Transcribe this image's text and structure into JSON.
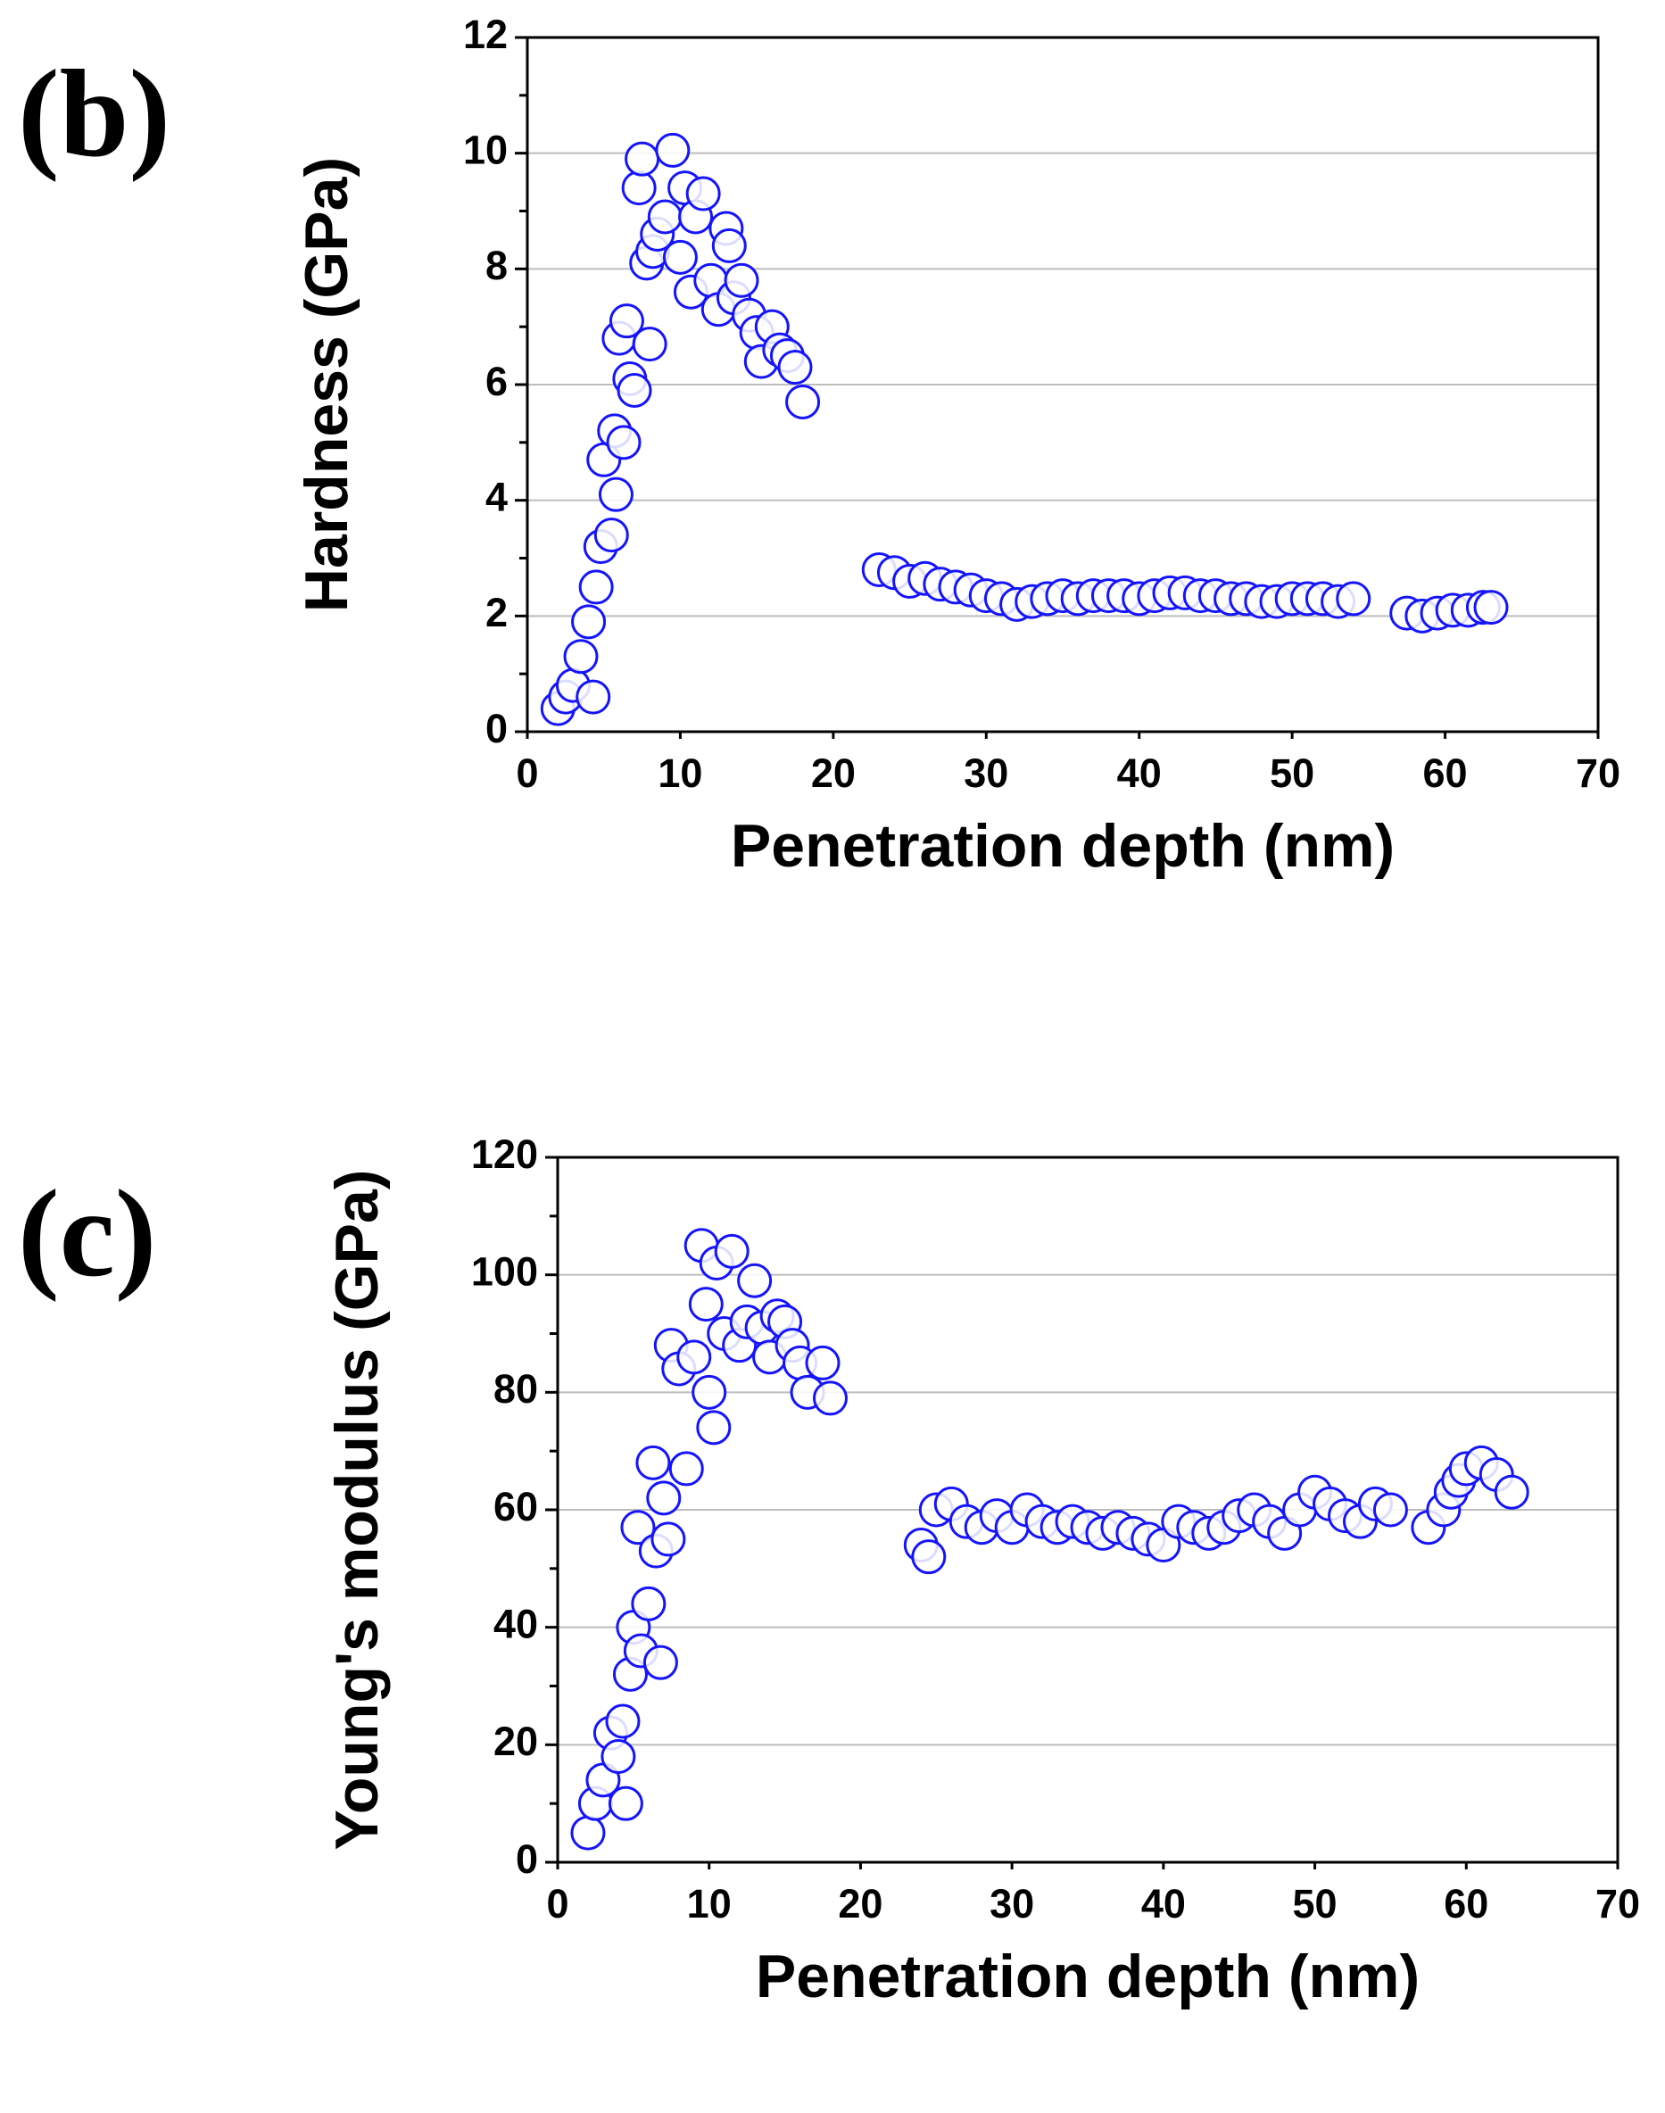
{
  "chart_data": [
    {
      "type": "scatter",
      "panel_label": "(b)",
      "x_label": "Penetration depth (nm)",
      "y_label": "Hardness (GPa)",
      "xlim": [
        0,
        70
      ],
      "xticks": [
        0,
        10,
        20,
        30,
        40,
        50,
        60,
        70
      ],
      "ylim": [
        0,
        12
      ],
      "yticks": [
        0,
        2,
        4,
        6,
        8,
        10,
        12
      ],
      "grid": true,
      "series": [
        {
          "color": "#1414ff",
          "x": [
            2,
            2.5,
            3,
            3.5,
            4,
            4.3,
            4.5,
            4.8,
            5,
            5.5,
            5.7,
            5.8,
            6,
            6.3,
            6.5,
            6.7,
            7,
            7.3,
            7.5,
            7.8,
            8,
            8.2,
            8.5,
            9,
            9.5,
            10,
            10.3,
            10.7,
            11,
            11.5,
            12,
            12.5,
            13,
            13.2,
            13.5,
            14,
            14.5,
            15,
            15.3,
            16,
            16.5,
            17,
            17.5,
            18,
            23,
            24,
            25,
            26,
            27,
            28,
            29,
            30,
            31,
            32,
            33,
            34,
            35,
            36,
            37,
            38,
            39,
            40,
            41,
            42,
            43,
            44,
            45,
            46,
            47,
            48,
            49,
            50,
            51,
            52,
            53,
            54,
            57.5,
            58.5,
            59.5,
            60.5,
            61.5,
            62.5,
            63
          ],
          "values": [
            0.4,
            0.6,
            0.8,
            1.3,
            1.9,
            0.6,
            2.5,
            3.2,
            4.7,
            3.4,
            5.2,
            4.1,
            6.8,
            5,
            7.1,
            6.1,
            5.9,
            9.4,
            9.9,
            8.1,
            6.7,
            8.3,
            8.6,
            8.9,
            10.05,
            8.2,
            9.4,
            7.6,
            8.9,
            9.3,
            7.8,
            7.3,
            8.7,
            8.4,
            7.5,
            7.8,
            7.2,
            6.9,
            6.4,
            7,
            6.6,
            6.5,
            6.3,
            5.7,
            2.8,
            2.75,
            2.6,
            2.65,
            2.55,
            2.5,
            2.45,
            2.35,
            2.3,
            2.2,
            2.25,
            2.3,
            2.35,
            2.3,
            2.35,
            2.35,
            2.35,
            2.3,
            2.35,
            2.4,
            2.4,
            2.35,
            2.35,
            2.3,
            2.3,
            2.25,
            2.25,
            2.3,
            2.3,
            2.3,
            2.25,
            2.3,
            2.05,
            2,
            2.05,
            2.1,
            2.1,
            2.15,
            2.15
          ]
        }
      ]
    },
    {
      "type": "scatter",
      "panel_label": "(c)",
      "x_label": "Penetration depth (nm)",
      "y_label": "Young's modulus (GPa)",
      "xlim": [
        0,
        70
      ],
      "xticks": [
        0,
        10,
        20,
        30,
        40,
        50,
        60,
        70
      ],
      "ylim": [
        0,
        120
      ],
      "yticks": [
        0,
        20,
        40,
        60,
        80,
        100,
        120
      ],
      "grid": true,
      "series": [
        {
          "color": "#1414ff",
          "x": [
            2,
            2.5,
            3,
            3.5,
            4,
            4.3,
            4.5,
            4.8,
            5,
            5.3,
            5.5,
            6,
            6.3,
            6.5,
            6.8,
            7,
            7.3,
            7.5,
            8,
            8.5,
            9,
            9.5,
            9.8,
            10,
            10.3,
            10.5,
            11,
            11.5,
            12,
            12.5,
            13,
            13.5,
            14,
            14.5,
            15,
            15.5,
            16,
            16.5,
            17.5,
            18,
            24,
            24.5,
            25,
            26,
            27,
            28,
            29,
            30,
            31,
            32,
            33,
            34,
            35,
            36,
            37,
            38,
            39,
            40,
            41,
            42,
            43,
            44,
            45,
            46,
            47,
            48,
            49,
            50,
            51,
            52,
            53,
            54,
            55,
            57.5,
            58.5,
            59,
            59.5,
            60,
            61,
            62,
            63
          ],
          "values": [
            5,
            10,
            14,
            22,
            18,
            24,
            10,
            32,
            40,
            57,
            36,
            44,
            68,
            53,
            34,
            62,
            55,
            88,
            84,
            67,
            86,
            105,
            95,
            80,
            74,
            102,
            90,
            104,
            88,
            92,
            99,
            91,
            86,
            93,
            92,
            88,
            85,
            80,
            85,
            79,
            54,
            52,
            60,
            61,
            58,
            57,
            59,
            57,
            60,
            58,
            57,
            58,
            57,
            56,
            57,
            56,
            55,
            54,
            58,
            57,
            56,
            57,
            59,
            60,
            58,
            56,
            60,
            63,
            61,
            59,
            58,
            61,
            60,
            57,
            60,
            63,
            65,
            67,
            68,
            66,
            63
          ]
        }
      ]
    }
  ]
}
